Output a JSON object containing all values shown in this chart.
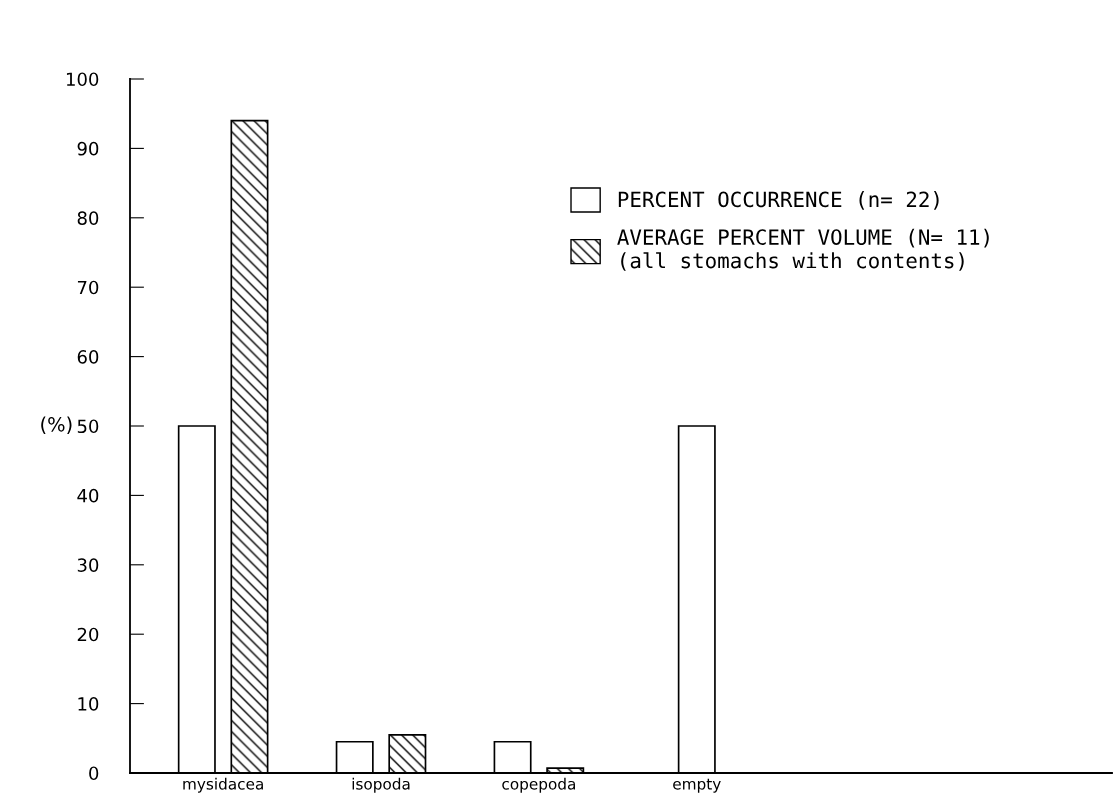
{
  "chart_data": {
    "type": "bar",
    "ylabel": "(%)",
    "categories": [
      "mysidacea",
      "isopoda",
      "copepoda",
      "empty"
    ],
    "series": [
      {
        "name": "PERCENT OCCURRENCE (n= 22)",
        "color": "#ffffff",
        "values": [
          50,
          4.5,
          4.5,
          50
        ]
      },
      {
        "name": "AVERAGE PERCENT VOLUME (N= 11)\n(all stomachs with contents)",
        "color": "#000000",
        "values": [
          94,
          5.5,
          0.7,
          null
        ]
      }
    ],
    "ylim": [
      0,
      100
    ],
    "yticks": [
      0,
      10,
      20,
      30,
      40,
      50,
      60,
      70,
      80,
      90,
      100
    ],
    "grid": false,
    "legend": "top right"
  }
}
